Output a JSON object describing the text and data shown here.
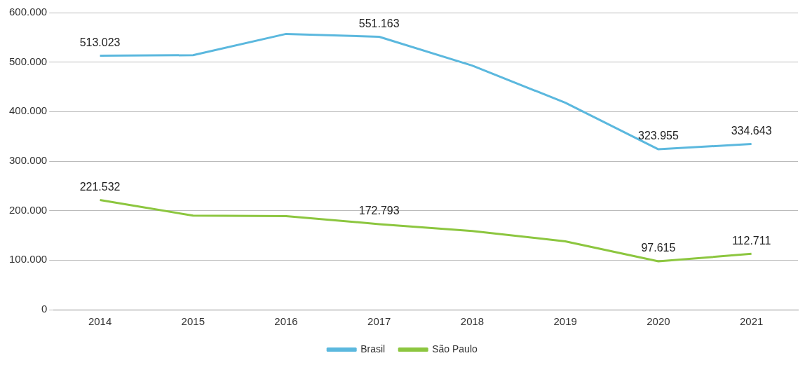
{
  "chart_data": {
    "type": "line",
    "categories": [
      "2014",
      "2015",
      "2016",
      "2017",
      "2018",
      "2019",
      "2020",
      "2021"
    ],
    "series": [
      {
        "name": "Brasil",
        "color": "#5bb8de",
        "values": [
          513023,
          514000,
          557000,
          551163,
          493000,
          418000,
          323955,
          334643
        ],
        "value_labels": [
          "513.023",
          null,
          null,
          "551.163",
          null,
          null,
          "323.955",
          "334.643"
        ]
      },
      {
        "name": "São Paulo",
        "color": "#8cc63f",
        "values": [
          221532,
          190000,
          189000,
          172793,
          159000,
          138000,
          97615,
          112711
        ],
        "value_labels": [
          "221.532",
          null,
          null,
          "172.793",
          null,
          null,
          "97.615",
          "112.711"
        ]
      }
    ],
    "ylim": [
      0,
      600000
    ],
    "yticks": [
      0,
      {
        "value": 100000,
        "label": "100.000"
      },
      {
        "value": 200000,
        "label": "200.000"
      },
      {
        "value": 300000,
        "label": "300.000"
      },
      {
        "value": 400000,
        "label": "400.000"
      },
      {
        "value": 500000,
        "label": "500.000"
      },
      {
        "value": 600000,
        "label": "600.000"
      }
    ],
    "grid": "y",
    "legend": "bottom",
    "marker": "none",
    "line_style": "solid"
  }
}
